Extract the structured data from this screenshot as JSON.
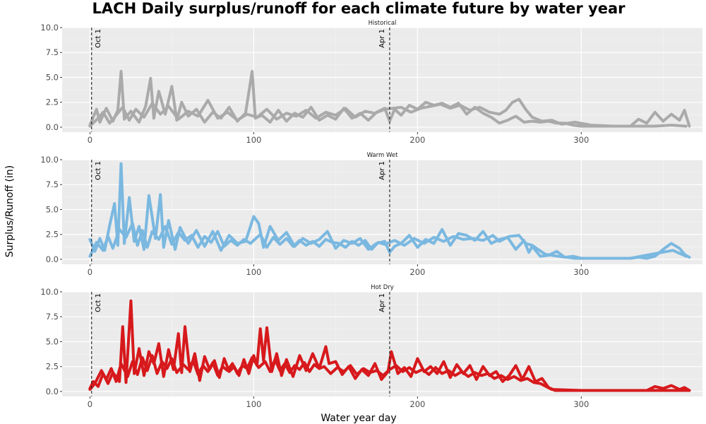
{
  "chart_data": {
    "type": "line",
    "title": "LACH Daily surplus/runoff for each climate future by water year",
    "xlabel": "Water year day",
    "ylabel": "Surplus/Runoff (in)",
    "xlim": [
      -17,
      374
    ],
    "ylim": [
      -0.5,
      10
    ],
    "x_ticks": [
      0,
      100,
      200,
      300
    ],
    "y_ticks": [
      0.0,
      2.5,
      5.0,
      7.5,
      10.0
    ],
    "y_tick_labels": [
      "0.0",
      "2.5",
      "5.0",
      "7.5",
      "10.0"
    ],
    "grid": true,
    "vlines": [
      {
        "x": 1,
        "label": "Oct 1",
        "style": "dashed"
      },
      {
        "x": 183,
        "label": "Apr 1",
        "style": "dashed"
      }
    ],
    "panels": [
      {
        "name": "Historical",
        "color": "#aaaaaa",
        "series": [
          {
            "x": [
              0,
              4,
              6,
              10,
              14,
              17,
              19,
              21,
              25,
              30,
              34,
              37,
              39,
              42,
              46,
              50,
              53,
              56,
              60,
              65,
              70,
              75,
              80,
              85,
              90,
              95,
              99,
              101,
              105,
              110,
              115,
              120,
              125,
              130,
              135,
              140,
              145,
              150,
              155,
              160,
              165,
              170,
              175,
              180,
              183,
              186,
              190,
              195,
              200,
              205,
              210,
              215,
              220,
              225,
              230,
              235,
              240,
              245,
              250,
              255,
              260,
              265,
              270,
              275,
              280,
              285,
              290,
              295,
              300,
              305,
              310,
              320,
              330,
              335,
              340,
              345,
              350,
              355,
              360,
              363,
              366
            ],
            "y": [
              0.2,
              1.8,
              0.5,
              1.9,
              0.6,
              1.7,
              5.6,
              0.8,
              1.6,
              0.5,
              2.1,
              4.9,
              0.9,
              3.6,
              1.3,
              4.1,
              0.7,
              2.5,
              1.1,
              1.8,
              0.5,
              1.5,
              0.9,
              2.0,
              0.6,
              1.4,
              5.6,
              0.9,
              1.2,
              0.5,
              1.7,
              0.6,
              1.4,
              1.0,
              2.0,
              0.7,
              1.2,
              0.8,
              1.9,
              0.9,
              1.4,
              0.7,
              1.5,
              1.9,
              0.6,
              1.8,
              1.2,
              2.2,
              1.8,
              2.5,
              2.2,
              2.4,
              2.0,
              2.4,
              1.3,
              2.0,
              1.4,
              1.0,
              0.4,
              0.7,
              1.1,
              0.5,
              0.6,
              0.5,
              0.6,
              0.4,
              0.4,
              0.2,
              0.1,
              0.1,
              0.1,
              0.1,
              0.1,
              0.8,
              0.4,
              1.5,
              0.6,
              1.3,
              0.7,
              1.7,
              0.1
            ]
          },
          {
            "x": [
              0,
              5,
              8,
              12,
              16,
              20,
              24,
              28,
              33,
              38,
              43,
              48,
              54,
              60,
              66,
              72,
              78,
              84,
              90,
              96,
              102,
              108,
              114,
              120,
              126,
              132,
              138,
              144,
              150,
              156,
              162,
              168,
              174,
              180,
              185,
              190,
              196,
              202,
              208,
              214,
              220,
              226,
              232,
              238,
              244,
              250,
              254,
              258,
              262,
              266,
              270,
              276,
              282,
              288,
              296,
              306,
              320,
              335,
              345,
              355,
              364
            ],
            "y": [
              0.1,
              0.9,
              1.5,
              0.4,
              1.2,
              2.0,
              0.7,
              1.8,
              1.0,
              2.4,
              1.3,
              2.1,
              0.8,
              1.6,
              1.1,
              2.7,
              0.9,
              1.5,
              0.7,
              1.3,
              1.0,
              1.8,
              0.8,
              1.4,
              1.1,
              1.7,
              0.9,
              1.5,
              1.2,
              1.9,
              1.0,
              1.6,
              1.4,
              1.8,
              1.9,
              2.0,
              1.5,
              1.9,
              2.1,
              2.3,
              1.9,
              2.2,
              1.7,
              2.0,
              1.5,
              1.3,
              1.7,
              2.5,
              2.8,
              1.8,
              1.0,
              0.6,
              0.7,
              0.3,
              0.5,
              0.2,
              0.1,
              0.1,
              0.1,
              0.2,
              0.1
            ]
          }
        ]
      },
      {
        "name": "Warm Wet",
        "color": "#7ab8e0",
        "series": [
          {
            "x": [
              0,
              3,
              6,
              9,
              12,
              15,
              17,
              19,
              21,
              24,
              27,
              30,
              33,
              36,
              40,
              43,
              45,
              48,
              52,
              55,
              60,
              65,
              70,
              75,
              80,
              85,
              90,
              95,
              100,
              103,
              106,
              110,
              115,
              120,
              125,
              130,
              135,
              140,
              145,
              150,
              155,
              160,
              165,
              170,
              175,
              180,
              183,
              186,
              190,
              195,
              200,
              205,
              210,
              215,
              220,
              225,
              230,
              235,
              240,
              245,
              250,
              255,
              260,
              265,
              268,
              270,
              275,
              280,
              285,
              290,
              295,
              300,
              310,
              320,
              330,
              335,
              340,
              345,
              350,
              355,
              360,
              363,
              366
            ],
            "y": [
              2.0,
              0.8,
              2.1,
              0.9,
              3.4,
              5.6,
              1.4,
              9.6,
              1.6,
              6.2,
              1.8,
              3.3,
              1.0,
              6.4,
              2.1,
              6.5,
              1.2,
              3.9,
              1.0,
              3.2,
              1.6,
              2.9,
              1.3,
              2.8,
              0.9,
              2.4,
              1.6,
              1.8,
              4.3,
              3.6,
              1.2,
              3.3,
              1.9,
              2.7,
              1.3,
              2.1,
              1.6,
              2.0,
              2.8,
              1.1,
              1.9,
              1.6,
              2.1,
              1.0,
              1.6,
              1.8,
              0.7,
              1.3,
              1.6,
              2.4,
              1.2,
              2.0,
              1.6,
              3.0,
              1.4,
              2.6,
              2.4,
              1.9,
              2.8,
              1.6,
              2.0,
              2.2,
              1.0,
              1.9,
              0.7,
              1.3,
              0.3,
              0.4,
              0.8,
              0.2,
              0.3,
              0.1,
              0.1,
              0.1,
              0.1,
              0.2,
              0.1,
              0.3,
              1.0,
              1.6,
              1.1,
              0.5,
              0.2
            ]
          },
          {
            "x": [
              0,
              4,
              8,
              11,
              14,
              18,
              22,
              26,
              29,
              32,
              35,
              38,
              42,
              46,
              50,
              54,
              58,
              62,
              66,
              70,
              74,
              78,
              82,
              86,
              90,
              94,
              98,
              104,
              108,
              112,
              116,
              120,
              124,
              128,
              132,
              136,
              140,
              144,
              148,
              152,
              156,
              160,
              164,
              168,
              172,
              176,
              180,
              186,
              192,
              198,
              204,
              210,
              216,
              222,
              228,
              234,
              240,
              246,
              250,
              256,
              262,
              266,
              270,
              278,
              286,
              296,
              310,
              330,
              346,
              356,
              364
            ],
            "y": [
              0.3,
              1.7,
              0.9,
              2.3,
              1.1,
              3.0,
              2.2,
              3.6,
              1.4,
              2.9,
              1.2,
              2.8,
              2.0,
              3.3,
              1.5,
              2.7,
              1.9,
              2.4,
              1.2,
              2.3,
              1.7,
              2.8,
              1.3,
              1.9,
              1.4,
              2.0,
              1.6,
              2.5,
              1.2,
              2.2,
              1.5,
              2.1,
              1.3,
              1.9,
              1.4,
              1.8,
              1.3,
              2.0,
              1.7,
              1.6,
              1.2,
              1.8,
              1.4,
              1.9,
              1.0,
              1.7,
              1.5,
              1.9,
              1.4,
              2.1,
              1.6,
              2.2,
              1.8,
              2.3,
              2.0,
              2.1,
              1.9,
              2.4,
              1.8,
              2.3,
              2.4,
              1.6,
              1.4,
              0.5,
              0.3,
              0.1,
              0.1,
              0.1,
              0.6,
              0.9,
              0.3
            ]
          }
        ]
      },
      {
        "name": "Hot Dry",
        "color": "#d7191c",
        "series": [
          {
            "x": [
              0,
              2,
              5,
              8,
              11,
              14,
              18,
              20,
              22,
              25,
              27,
              30,
              33,
              36,
              39,
              42,
              45,
              48,
              51,
              54,
              56,
              58,
              61,
              64,
              67,
              70,
              73,
              76,
              79,
              82,
              85,
              88,
              91,
              94,
              97,
              100,
              102,
              104,
              106,
              108,
              111,
              114,
              117,
              120,
              124,
              128,
              132,
              136,
              140,
              144,
              146,
              150,
              154,
              158,
              162,
              166,
              170,
              174,
              178,
              182,
              184,
              188,
              192,
              196,
              200,
              204,
              208,
              212,
              216,
              220,
              224,
              228,
              232,
              236,
              240,
              244,
              248,
              252,
              256,
              260,
              264,
              268,
              272,
              276,
              280,
              284,
              290,
              300,
              320,
              340,
              345,
              350,
              355,
              360,
              363,
              366
            ],
            "y": [
              0.3,
              1.0,
              0.5,
              1.8,
              0.8,
              1.9,
              1.0,
              6.5,
              0.9,
              9.1,
              1.8,
              4.3,
              1.6,
              4.0,
              2.8,
              4.8,
              1.5,
              4.2,
              2.2,
              5.8,
              1.9,
              6.5,
              2.0,
              3.8,
              1.1,
              3.5,
              2.2,
              3.1,
              1.4,
              3.3,
              2.0,
              2.5,
              1.6,
              3.2,
              1.8,
              3.6,
              2.6,
              6.3,
              3.1,
              6.4,
              2.0,
              3.8,
              1.6,
              3.2,
              1.5,
              3.6,
              2.1,
              3.8,
              2.3,
              4.5,
              2.8,
              3.0,
              1.7,
              2.5,
              1.3,
              2.2,
              1.6,
              2.8,
              1.2,
              2.0,
              4.0,
              1.8,
              2.4,
              1.5,
              3.3,
              2.0,
              2.5,
              1.8,
              3.0,
              1.4,
              2.7,
              1.8,
              2.6,
              1.2,
              2.5,
              1.6,
              2.0,
              1.0,
              1.6,
              2.6,
              1.2,
              2.5,
              1.0,
              1.3,
              0.4,
              0.1,
              0.1,
              0.1,
              0.1,
              0.1,
              0.5,
              0.3,
              0.6,
              0.2,
              0.4,
              0.1
            ]
          },
          {
            "x": [
              0,
              3,
              7,
              10,
              13,
              16,
              19,
              23,
              26,
              29,
              32,
              35,
              38,
              41,
              44,
              47,
              50,
              53,
              57,
              60,
              63,
              66,
              69,
              72,
              75,
              78,
              81,
              84,
              87,
              90,
              93,
              96,
              99,
              103,
              107,
              110,
              113,
              116,
              119,
              122,
              125,
              128,
              131,
              134,
              137,
              140,
              143,
              147,
              151,
              155,
              159,
              163,
              167,
              171,
              175,
              179,
              183,
              187,
              191,
              195,
              199,
              203,
              207,
              211,
              215,
              219,
              223,
              227,
              231,
              235,
              239,
              243,
              247,
              251,
              255,
              259,
              263,
              267,
              271,
              275,
              282,
              300,
              330,
              350,
              366
            ],
            "y": [
              0.2,
              0.8,
              2.1,
              1.2,
              2.3,
              1.0,
              2.8,
              1.5,
              3.0,
              1.7,
              3.4,
              2.1,
              3.6,
              1.8,
              3.0,
              2.3,
              3.3,
              1.9,
              2.7,
              2.2,
              3.1,
              1.7,
              2.6,
              2.0,
              2.9,
              1.6,
              2.5,
              2.1,
              2.8,
              1.8,
              2.6,
              2.3,
              3.4,
              2.4,
              3.0,
              2.0,
              3.2,
              2.1,
              2.8,
              1.9,
              2.6,
              2.2,
              2.9,
              2.0,
              2.7,
              2.3,
              2.5,
              1.8,
              2.4,
              2.0,
              2.6,
              1.7,
              2.3,
              1.9,
              2.1,
              1.6,
              2.2,
              2.6,
              2.0,
              2.4,
              1.9,
              2.2,
              1.7,
              2.4,
              1.8,
              2.1,
              1.6,
              2.0,
              1.5,
              1.9,
              1.6,
              1.8,
              1.3,
              1.6,
              1.2,
              1.5,
              1.1,
              1.3,
              0.9,
              0.8,
              0.2,
              0.1,
              0.1,
              0.1,
              0.1
            ]
          }
        ]
      }
    ]
  }
}
